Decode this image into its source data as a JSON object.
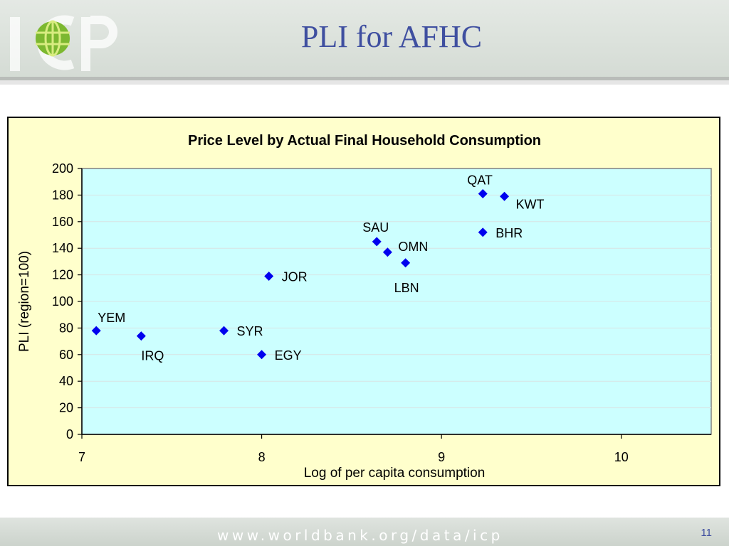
{
  "slide": {
    "title": "PLI for AFHC",
    "footer_url": "www.worldbank.org/data/icp",
    "page_number": "11"
  },
  "colors": {
    "title": "#3f4fa0",
    "plot_background": "#ccffff",
    "chart_background": "#ffffcc",
    "marker": "#0000ee"
  },
  "chart_data": {
    "type": "scatter",
    "title": "Price Level by Actual Final Household Consumption",
    "xlabel": "Log of per capita consumption",
    "ylabel": "PLI (region=100)",
    "xlim": [
      7,
      10.5
    ],
    "ylim": [
      0,
      200
    ],
    "xticks": [
      7,
      8,
      9,
      10
    ],
    "yticks": [
      0,
      20,
      40,
      60,
      80,
      100,
      120,
      140,
      160,
      180,
      200
    ],
    "grid": "horizontal",
    "legend": "none",
    "points": [
      {
        "label": "YEM",
        "x": 7.08,
        "y": 78
      },
      {
        "label": "IRQ",
        "x": 7.33,
        "y": 74
      },
      {
        "label": "SYR",
        "x": 7.79,
        "y": 78
      },
      {
        "label": "EGY",
        "x": 8.0,
        "y": 60
      },
      {
        "label": "JOR",
        "x": 8.04,
        "y": 119
      },
      {
        "label": "SAU",
        "x": 8.64,
        "y": 145
      },
      {
        "label": "OMN",
        "x": 8.7,
        "y": 137
      },
      {
        "label": "LBN",
        "x": 8.8,
        "y": 129
      },
      {
        "label": "QAT",
        "x": 9.23,
        "y": 181
      },
      {
        "label": "KWT",
        "x": 9.35,
        "y": 179
      },
      {
        "label": "BHR",
        "x": 9.23,
        "y": 152
      }
    ]
  }
}
